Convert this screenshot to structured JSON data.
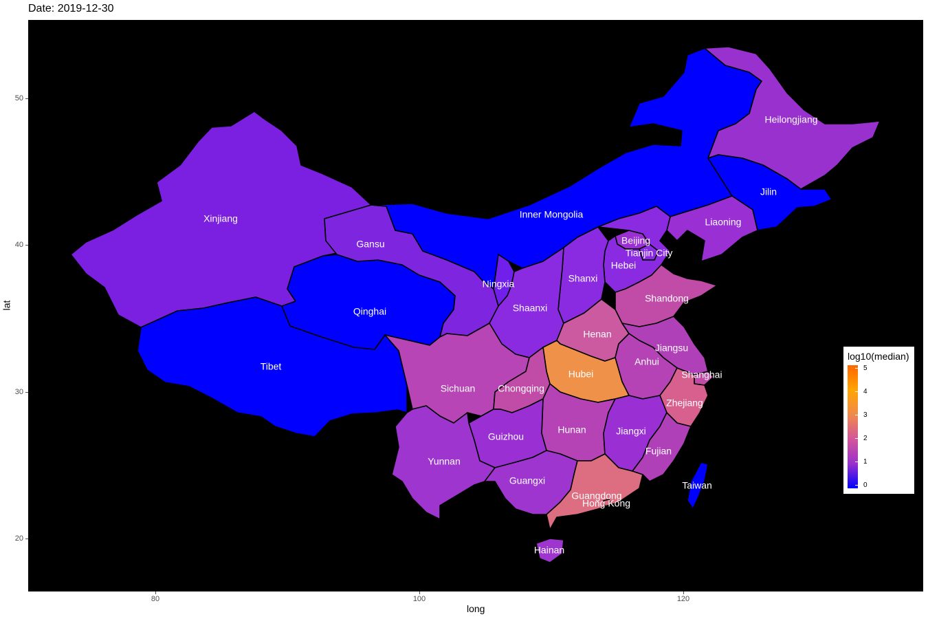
{
  "title": "Date: 2019-12-30",
  "colors": {
    "panel_background": "#000000",
    "low": "#0000ff",
    "mid": "#9932cc",
    "high": "#ff6600",
    "province_border": "#000000",
    "label": "#ffffff"
  },
  "axes": {
    "xlabel": "long",
    "ylabel": "lat",
    "x_ticks": [
      "80",
      "100",
      "120"
    ],
    "y_ticks": [
      "20",
      "30",
      "40",
      "50"
    ],
    "xlim": [
      70.3,
      138.3
    ],
    "ylim": [
      16.5,
      55.5
    ]
  },
  "legend": {
    "title": "log10(median)",
    "ticks": [
      "0",
      "1",
      "2",
      "3",
      "4",
      "5"
    ],
    "range": [
      0,
      5.3
    ]
  },
  "map": {
    "provinces": [
      {
        "name": "Xinjiang",
        "fill": "#7b20e0"
      },
      {
        "name": "Tibet",
        "fill": "#0000ff"
      },
      {
        "name": "Qinghai",
        "fill": "#0000ff"
      },
      {
        "name": "Gansu",
        "fill": "#7e25e0"
      },
      {
        "name": "Inner Mongolia",
        "fill": "#0000ff"
      },
      {
        "name": "Heilongjiang",
        "fill": "#9931cf"
      },
      {
        "name": "Jilin",
        "fill": "#0000ff"
      },
      {
        "name": "Liaoning",
        "fill": "#9a30d4"
      },
      {
        "name": "Beijing",
        "fill": "#9a30d4"
      },
      {
        "name": "Tianjin City",
        "fill": "#8a2be2"
      },
      {
        "name": "Hebei",
        "fill": "#8a2be2"
      },
      {
        "name": "Ningxia",
        "fill": "#7020ea"
      },
      {
        "name": "Shanxi",
        "fill": "#8a2be2"
      },
      {
        "name": "Shaanxi",
        "fill": "#8a2be2"
      },
      {
        "name": "Shandong",
        "fill": "#c04ca8"
      },
      {
        "name": "Henan",
        "fill": "#cc5aa0"
      },
      {
        "name": "Jiangsu",
        "fill": "#b040b8"
      },
      {
        "name": "Anhui",
        "fill": "#b543b5"
      },
      {
        "name": "Shanghai",
        "fill": "#c04ca8"
      },
      {
        "name": "Hubei",
        "fill": "#f0914a"
      },
      {
        "name": "Sichuan",
        "fill": "#b845b5"
      },
      {
        "name": "Chongqing",
        "fill": "#c04ca8"
      },
      {
        "name": "Zhejiang",
        "fill": "#d8608e"
      },
      {
        "name": "Hunan",
        "fill": "#b543b5"
      },
      {
        "name": "Jiangxi",
        "fill": "#9a30d4"
      },
      {
        "name": "Guizhou",
        "fill": "#9a30d4"
      },
      {
        "name": "Yunnan",
        "fill": "#9f35cf"
      },
      {
        "name": "Fujian",
        "fill": "#b040b8"
      },
      {
        "name": "Guangxi",
        "fill": "#9f35cf"
      },
      {
        "name": "Guangdong",
        "fill": "#dd6d80"
      },
      {
        "name": "Hong Kong",
        "fill": "#dd6d80"
      },
      {
        "name": "Taiwan",
        "fill": "#0000ff"
      },
      {
        "name": "Hainan",
        "fill": "#9f35cf"
      }
    ]
  }
}
